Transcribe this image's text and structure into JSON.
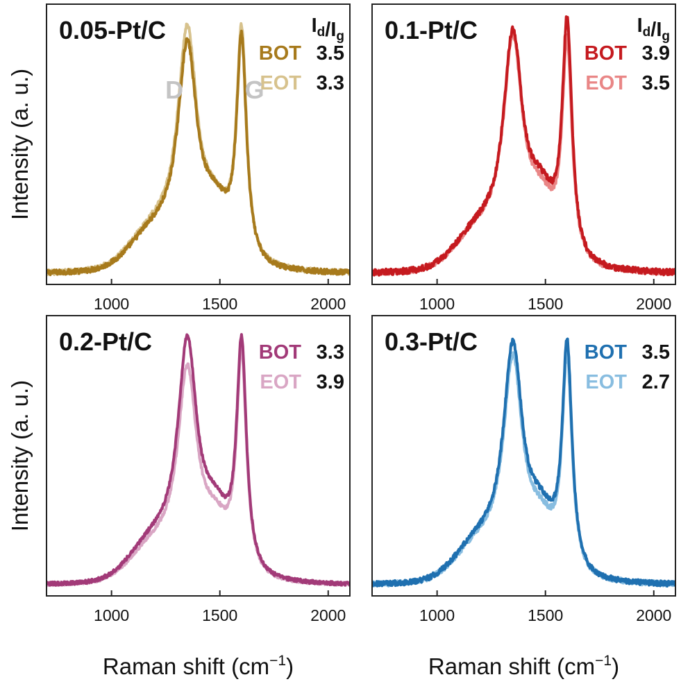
{
  "axes": {
    "ylabel": "Intensity (a. u.)",
    "xlabel": "Raman shift (cm",
    "xlabel_sup": "−1",
    "xlabel_close": ")"
  },
  "ratio_header": {
    "main": "I",
    "sub_d": "d",
    "slash": "/",
    "sub_g": "g"
  },
  "peak_labels": {
    "d": "D",
    "g": "G"
  },
  "chart_data": [
    {
      "type": "line",
      "title": "0.05-Pt/C",
      "show_ratio_header": true,
      "show_peak_labels": true,
      "xlim": [
        700,
        2100
      ],
      "ylim": [
        0,
        1.1
      ],
      "xticks": [
        1000,
        1500,
        2000
      ],
      "yticks_shown": false,
      "grid": false,
      "legend_position": "top-right",
      "series": [
        {
          "name": "BOT",
          "ratio": "3.5",
          "color": "#a77a1c",
          "baseline": 0.04,
          "d_height": 0.94,
          "g_height": 0.97,
          "valley": 0.46,
          "noise": 0.01
        },
        {
          "name": "EOT",
          "ratio": "3.3",
          "color": "#d7c28d",
          "baseline": 0.04,
          "d_height": 1.0,
          "g_height": 1.0,
          "valley": 0.44,
          "noise": 0.01
        }
      ]
    },
    {
      "type": "line",
      "title": "0.1-Pt/C",
      "show_ratio_header": true,
      "show_peak_labels": false,
      "xlim": [
        700,
        2100
      ],
      "ylim": [
        0,
        1.1
      ],
      "xticks": [
        1000,
        1500,
        2000
      ],
      "yticks_shown": false,
      "grid": false,
      "legend_position": "top-right",
      "series": [
        {
          "name": "BOT",
          "ratio": "3.9",
          "color": "#c51a1f",
          "baseline": 0.04,
          "d_height": 0.98,
          "g_height": 1.03,
          "valley": 0.55,
          "noise": 0.012
        },
        {
          "name": "EOT",
          "ratio": "3.5",
          "color": "#e98686",
          "baseline": 0.04,
          "d_height": 0.96,
          "g_height": 0.95,
          "valley": 0.5,
          "noise": 0.01
        }
      ]
    },
    {
      "type": "line",
      "title": "0.2-Pt/C",
      "show_ratio_header": false,
      "show_peak_labels": false,
      "xlim": [
        700,
        2100
      ],
      "ylim": [
        0,
        1.1
      ],
      "xticks": [
        1000,
        1500,
        2000
      ],
      "yticks_shown": false,
      "grid": false,
      "legend_position": "top-right",
      "series": [
        {
          "name": "BOT",
          "ratio": "3.3",
          "color": "#a23a78",
          "baseline": 0.04,
          "d_height": 1.0,
          "g_height": 1.0,
          "valley": 0.5,
          "noise": 0.007
        },
        {
          "name": "EOT",
          "ratio": "3.9",
          "color": "#d9a6c4",
          "baseline": 0.04,
          "d_height": 0.89,
          "g_height": 0.96,
          "valley": 0.42,
          "noise": 0.007
        }
      ]
    },
    {
      "type": "line",
      "title": "0.3-Pt/C",
      "show_ratio_header": false,
      "show_peak_labels": false,
      "xlim": [
        700,
        2100
      ],
      "ylim": [
        0,
        1.1
      ],
      "xticks": [
        1000,
        1500,
        2000
      ],
      "yticks_shown": false,
      "grid": false,
      "legend_position": "top-right",
      "series": [
        {
          "name": "BOT",
          "ratio": "3.5",
          "color": "#1f70b0",
          "baseline": 0.04,
          "d_height": 0.98,
          "g_height": 0.99,
          "valley": 0.48,
          "noise": 0.01
        },
        {
          "name": "EOT",
          "ratio": "2.7",
          "color": "#88bde0",
          "baseline": 0.04,
          "d_height": 0.93,
          "g_height": 0.94,
          "valley": 0.42,
          "noise": 0.01
        }
      ]
    }
  ]
}
